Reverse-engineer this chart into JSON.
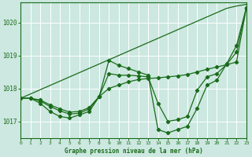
{
  "title": "Graphe pression niveau de la mer (hPa)",
  "xlabel_ticks": [
    0,
    1,
    2,
    3,
    4,
    5,
    6,
    7,
    8,
    9,
    10,
    11,
    12,
    13,
    14,
    15,
    16,
    17,
    18,
    19,
    20,
    21,
    22,
    23
  ],
  "ylim": [
    1016.5,
    1020.6
  ],
  "xlim": [
    0,
    23
  ],
  "yticks": [
    1017,
    1018,
    1019,
    1020
  ],
  "bg_color": "#cce8e0",
  "grid_color": "#ffffff",
  "line_color": "#1a6b1a",
  "line_straight": [
    1017.7,
    1017.83,
    1017.96,
    1018.09,
    1018.22,
    1018.35,
    1018.48,
    1018.61,
    1018.74,
    1018.87,
    1019.0,
    1019.13,
    1019.26,
    1019.39,
    1019.52,
    1019.65,
    1019.78,
    1019.91,
    1020.04,
    1020.17,
    1020.3,
    1020.43,
    1020.5,
    1020.55
  ],
  "line_wavy": [
    1017.7,
    1017.7,
    1017.55,
    1017.3,
    1017.15,
    1017.1,
    1017.2,
    1017.3,
    1017.75,
    1018.85,
    1018.7,
    1018.6,
    1018.5,
    1018.4,
    1016.75,
    1016.65,
    1016.75,
    1016.85,
    1017.4,
    1018.1,
    1018.25,
    1018.75,
    1019.3,
    1020.45
  ],
  "line_smooth": [
    1017.7,
    1017.7,
    1017.65,
    1017.5,
    1017.38,
    1017.28,
    1017.3,
    1017.42,
    1017.75,
    1018.0,
    1018.1,
    1018.2,
    1018.27,
    1018.3,
    1018.32,
    1018.35,
    1018.38,
    1018.42,
    1018.5,
    1018.58,
    1018.65,
    1018.72,
    1018.8,
    1020.45
  ],
  "line_mid": [
    1017.7,
    1017.7,
    1017.62,
    1017.45,
    1017.32,
    1017.22,
    1017.25,
    1017.38,
    1017.75,
    1018.45,
    1018.4,
    1018.4,
    1018.38,
    1018.35,
    1017.55,
    1017.0,
    1017.05,
    1017.15,
    1017.95,
    1018.35,
    1018.45,
    1018.73,
    1019.1,
    1020.45
  ]
}
